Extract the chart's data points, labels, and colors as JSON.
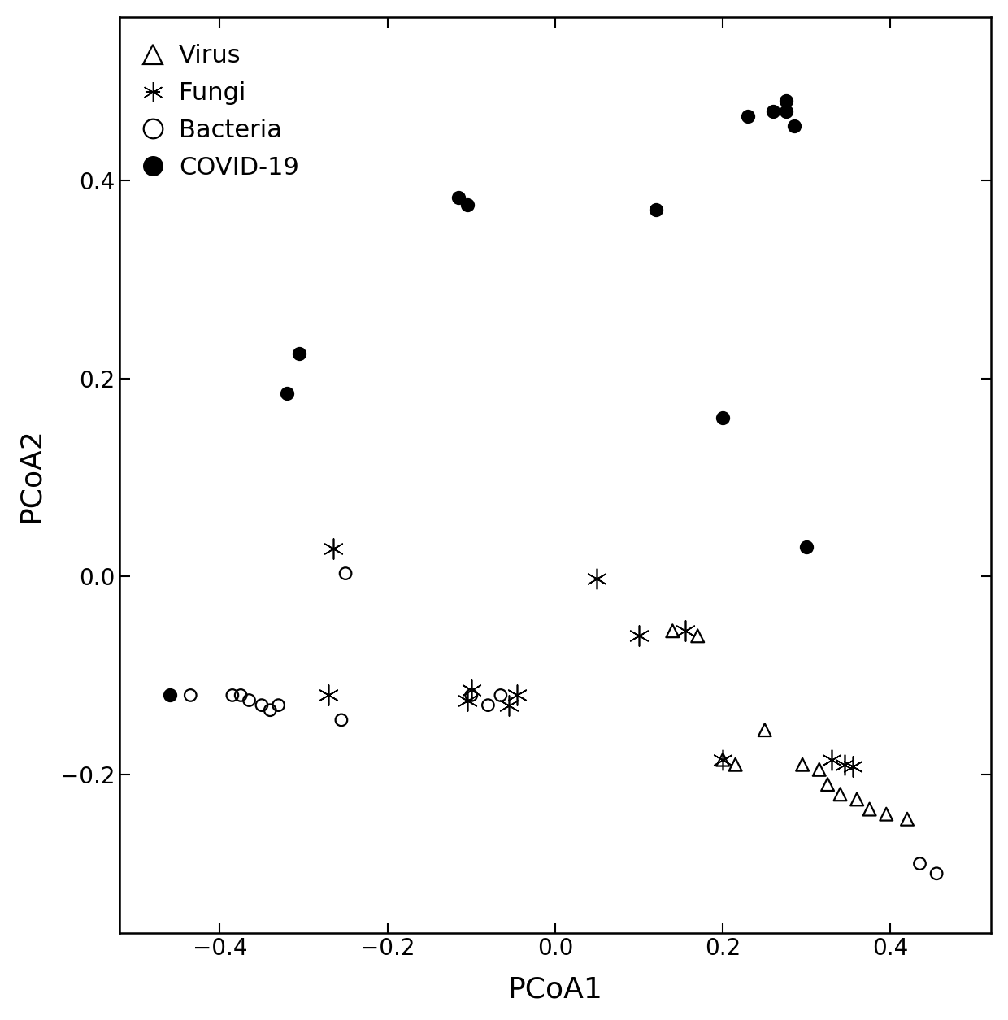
{
  "virus_x": [
    0.14,
    0.17,
    0.2,
    0.215,
    0.25,
    0.295,
    0.315,
    0.325,
    0.34,
    0.36,
    0.375,
    0.395,
    0.42
  ],
  "virus_y": [
    -0.055,
    -0.06,
    -0.185,
    -0.19,
    -0.155,
    -0.19,
    -0.195,
    -0.21,
    -0.22,
    -0.225,
    -0.235,
    -0.24,
    -0.245
  ],
  "fungi_x": [
    -0.265,
    -0.27,
    -0.1,
    -0.105,
    -0.045,
    -0.055,
    0.05,
    0.1,
    0.155,
    0.2,
    0.33,
    0.345,
    0.355
  ],
  "fungi_y": [
    0.028,
    -0.12,
    -0.115,
    -0.125,
    -0.12,
    -0.13,
    -0.002,
    -0.06,
    -0.055,
    -0.185,
    -0.185,
    -0.19,
    -0.192
  ],
  "bacteria_x": [
    -0.435,
    -0.385,
    -0.375,
    -0.365,
    -0.35,
    -0.34,
    -0.33,
    -0.255,
    -0.25,
    -0.1,
    -0.08,
    -0.065,
    0.435,
    0.455
  ],
  "bacteria_y": [
    -0.12,
    -0.12,
    -0.12,
    -0.125,
    -0.13,
    -0.135,
    -0.13,
    -0.145,
    0.003,
    -0.12,
    -0.13,
    -0.12,
    -0.29,
    -0.3
  ],
  "covid_x": [
    -0.46,
    -0.32,
    -0.305,
    -0.105,
    -0.115,
    0.12,
    0.2,
    0.23,
    0.26,
    0.275,
    0.275,
    0.285,
    0.3
  ],
  "covid_y": [
    -0.12,
    0.185,
    0.225,
    0.375,
    0.383,
    0.37,
    0.16,
    0.465,
    0.47,
    0.47,
    0.48,
    0.455,
    0.03
  ],
  "xlim": [
    -0.52,
    0.52
  ],
  "ylim": [
    -0.36,
    0.565
  ],
  "xticks": [
    -0.4,
    -0.2,
    0.0,
    0.2,
    0.4
  ],
  "yticks": [
    -0.2,
    0.0,
    0.2,
    0.4
  ],
  "xlabel": "PCoA1",
  "ylabel": "PCoA2",
  "bg_color": "#ffffff",
  "marker_color": "#000000",
  "font_size_axis": 26,
  "font_size_tick": 20,
  "font_size_legend": 22
}
